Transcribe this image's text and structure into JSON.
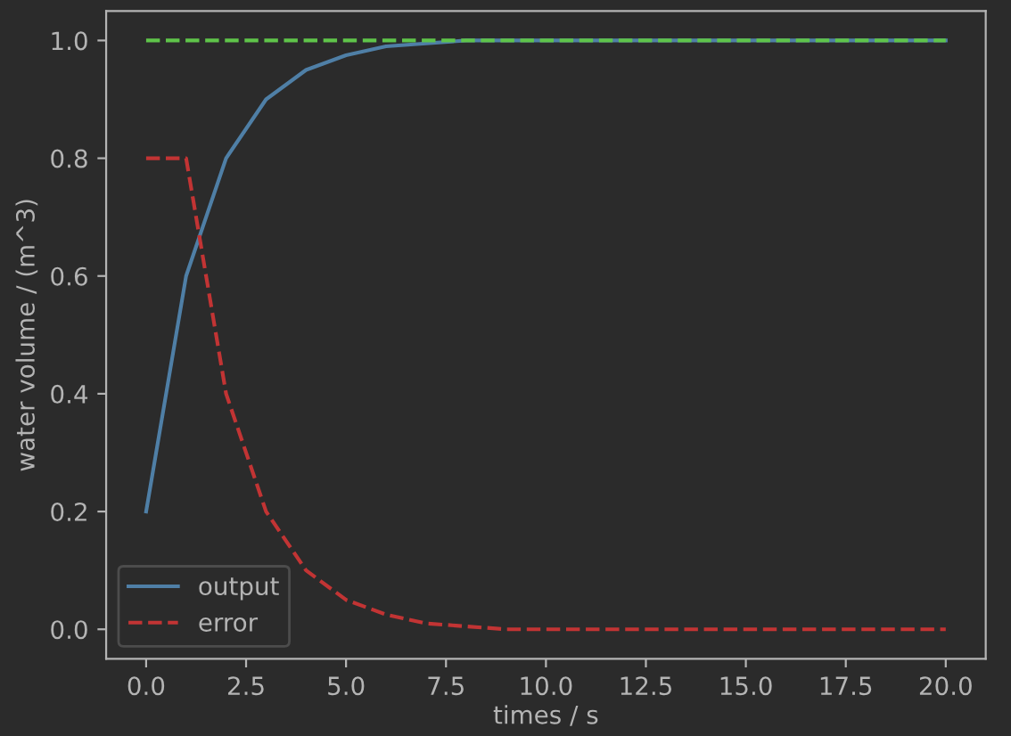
{
  "chart_data": {
    "type": "line",
    "xlabel": "times / s",
    "ylabel": "water volume / (m^3)",
    "x": [
      0,
      1,
      2,
      3,
      4,
      5,
      6,
      7,
      8,
      9,
      10,
      11,
      12,
      13,
      14,
      15,
      16,
      17,
      18,
      19,
      20
    ],
    "series": [
      {
        "name": "output",
        "color": "#4f7fa6",
        "line_style": "solid",
        "values": [
          0.2,
          0.6,
          0.8,
          0.9,
          0.95,
          0.975,
          0.99,
          0.995,
          1.0,
          1.0,
          1.0,
          1.0,
          1.0,
          1.0,
          1.0,
          1.0,
          1.0,
          1.0,
          1.0,
          1.0,
          1.0
        ]
      },
      {
        "name": "error",
        "color": "#c23434",
        "line_style": "dashed",
        "values": [
          0.8,
          0.8,
          0.4,
          0.2,
          0.1,
          0.05,
          0.025,
          0.01,
          0.005,
          0.0,
          0.0,
          0.0,
          0.0,
          0.0,
          0.0,
          0.0,
          0.0,
          0.0,
          0.0,
          0.0,
          0.0
        ]
      },
      {
        "color": "#5fc44a",
        "line_style": "dashed",
        "values": [
          1.0,
          1.0,
          1.0,
          1.0,
          1.0,
          1.0,
          1.0,
          1.0,
          1.0,
          1.0,
          1.0,
          1.0,
          1.0,
          1.0,
          1.0,
          1.0,
          1.0,
          1.0,
          1.0,
          1.0,
          1.0
        ]
      }
    ],
    "xlim": [
      -1.0,
      21.0
    ],
    "ylim": [
      -0.05,
      1.05
    ],
    "xticks": [
      {
        "value": 0,
        "label": "0.0"
      },
      2.5,
      {
        "value": 5,
        "label": "5.0"
      },
      7.5,
      {
        "value": 10,
        "label": "10.0"
      },
      12.5,
      {
        "value": 15,
        "label": "15.0"
      },
      17.5,
      {
        "value": 20,
        "label": "20.0"
      }
    ],
    "yticks": [
      {
        "value": 0,
        "label": "0.0"
      },
      0.2,
      0.4,
      0.6,
      0.8,
      {
        "value": 1,
        "label": "1.0"
      }
    ],
    "grid": false,
    "legend": "lower left",
    "marker": "none"
  }
}
